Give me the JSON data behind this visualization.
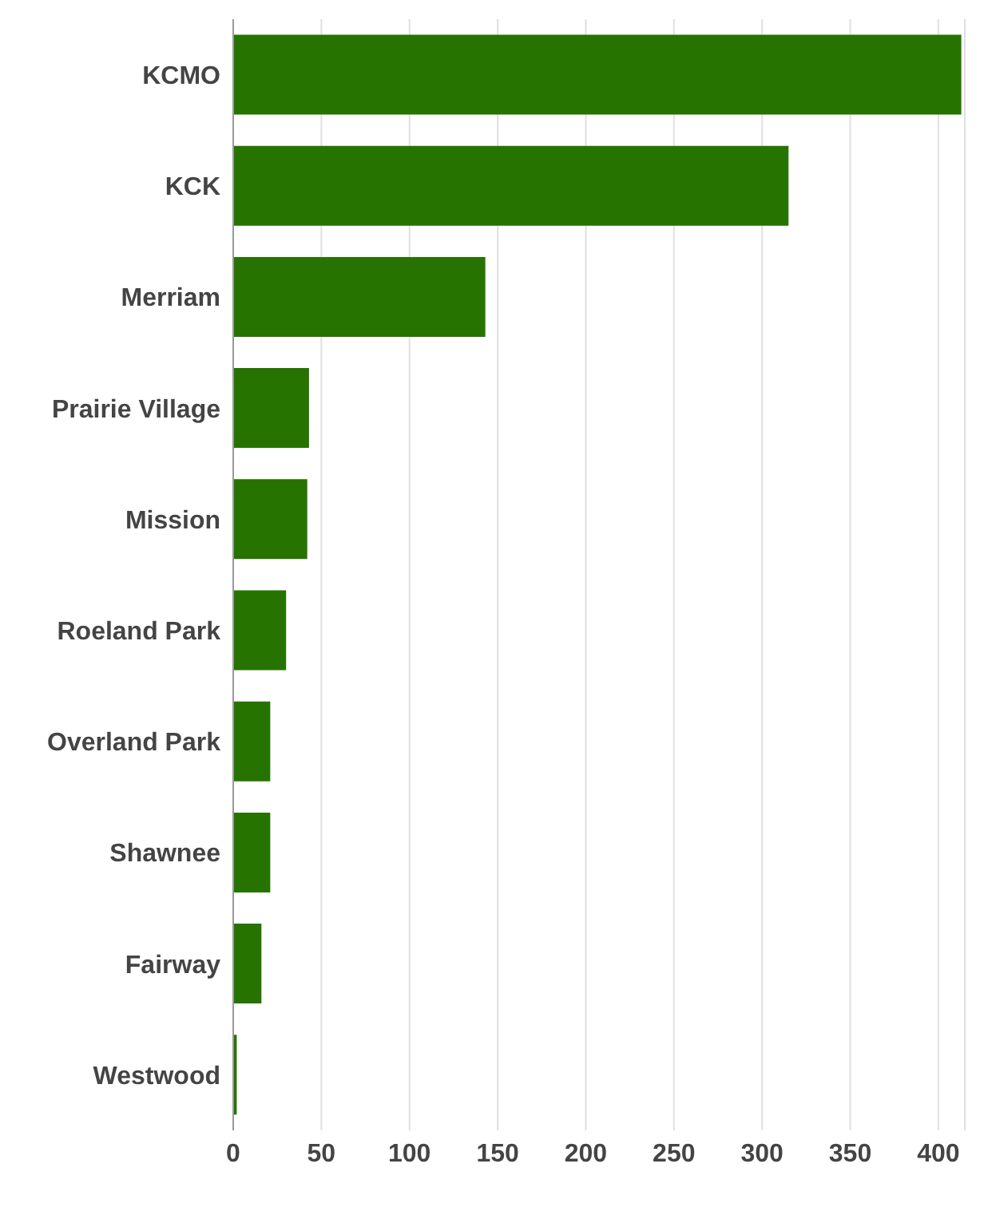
{
  "chart_data": {
    "type": "bar",
    "orientation": "horizontal",
    "categories": [
      "KCMO",
      "KCK",
      "Merriam",
      "Prairie Village",
      "Mission",
      "Roeland Park",
      "Overland Park",
      "Shawnee",
      "Fairway",
      "Westwood"
    ],
    "values": [
      413,
      315,
      143,
      43,
      42,
      30,
      21,
      21,
      16,
      2
    ],
    "color": "#267300",
    "xlim": [
      0,
      415
    ],
    "xticks": [
      0,
      50,
      100,
      150,
      200,
      250,
      300,
      350,
      400
    ],
    "grid": "x"
  }
}
